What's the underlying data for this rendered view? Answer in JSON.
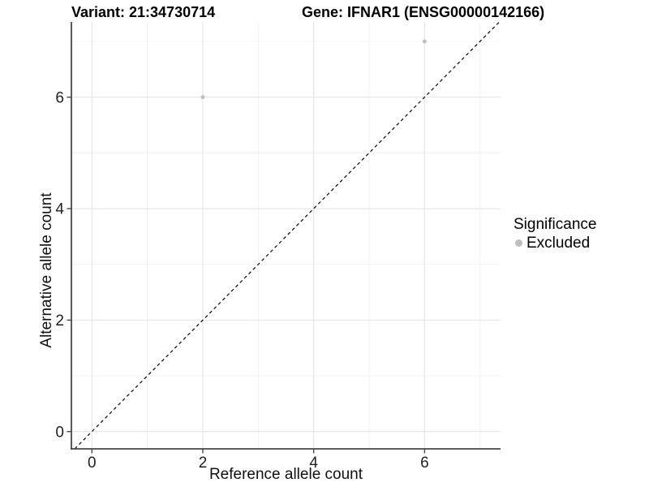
{
  "chart_data": {
    "type": "scatter",
    "title_left": "Variant: 21:34730714",
    "title_right": "Gene: IFNAR1 (ENSG00000142166)",
    "xlabel": "Reference allele count",
    "ylabel": "Alternative allele count",
    "xlim": [
      -0.37,
      7.37
    ],
    "ylim": [
      -0.31,
      7.35
    ],
    "xticks": [
      0,
      2,
      4,
      6
    ],
    "yticks": [
      0,
      2,
      4,
      6
    ],
    "xtick_labels": [
      "0",
      "2",
      "4",
      "6"
    ],
    "ytick_labels": [
      "0",
      "2",
      "4",
      "6"
    ],
    "grid_major_x": [
      0,
      2,
      4,
      6
    ],
    "grid_major_y": [
      0,
      2,
      4,
      6
    ],
    "grid_minor_x": [
      1,
      3,
      5,
      7
    ],
    "grid_minor_y": [
      1,
      3,
      5,
      7
    ],
    "points": [
      {
        "x": 2,
        "y": 6,
        "series": "Excluded"
      },
      {
        "x": 6,
        "y": 7,
        "series": "Excluded"
      }
    ],
    "abline": {
      "slope": 1,
      "intercept": 0,
      "linetype": "dashed"
    },
    "legend": {
      "title": "Significance",
      "position": "right",
      "items": [
        {
          "label": "Excluded",
          "color": "#bebebe"
        }
      ]
    },
    "colors": {
      "point": "#bebebe",
      "grid_major": "#e4e4e4",
      "grid_minor": "#f0f0f0",
      "axis_line": "#474747",
      "tick_label": "#1f1f1f",
      "abline": "#000000",
      "background": "#ffffff"
    }
  }
}
